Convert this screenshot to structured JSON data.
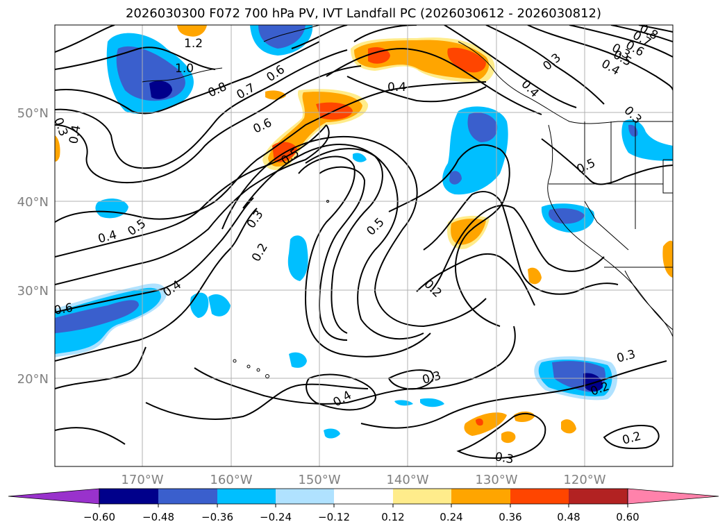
{
  "title": "2026030300 F072 700 hPa PV, IVT Landfall PC (2026030612 - 2026030812)",
  "map": {
    "lat_labels": [
      "50°N",
      "40°N",
      "30°N",
      "20°N"
    ],
    "lon_labels": [
      "170°W",
      "160°W",
      "150°W",
      "140°W",
      "130°W",
      "120°W"
    ],
    "contour_labels": [
      "1.2",
      "1.0",
      "0.8",
      "0.7",
      "0.6",
      "0.6",
      "0.5",
      "0.4",
      "0.3",
      "0.4",
      "0.4",
      "0.5",
      "0.4",
      "0.6",
      "0.3",
      "0.2",
      "0.5",
      "0.2",
      "0.3",
      "0.4",
      "0.3",
      "0.2",
      "0.3",
      "0.2",
      "0.5",
      "0.3",
      "0.4",
      "0.5",
      "0.6",
      "0.7",
      "0.8",
      "0.3",
      "0.4",
      "0.3"
    ],
    "colors": {
      "land_border": "#000000",
      "grid": "#b0b0b0"
    }
  },
  "colorbar": {
    "ticks": [
      "−0.60",
      "−0.48",
      "−0.36",
      "−0.24",
      "−0.12",
      "0.12",
      "0.24",
      "0.36",
      "0.48",
      "0.60"
    ],
    "colors": [
      "#9932cc",
      "#00008b",
      "#3a5fcd",
      "#00bfff",
      "#b0e2ff",
      "#ffffff",
      "#ffec8b",
      "#ffa500",
      "#ff4500",
      "#b22222",
      "#ff82ab"
    ]
  }
}
